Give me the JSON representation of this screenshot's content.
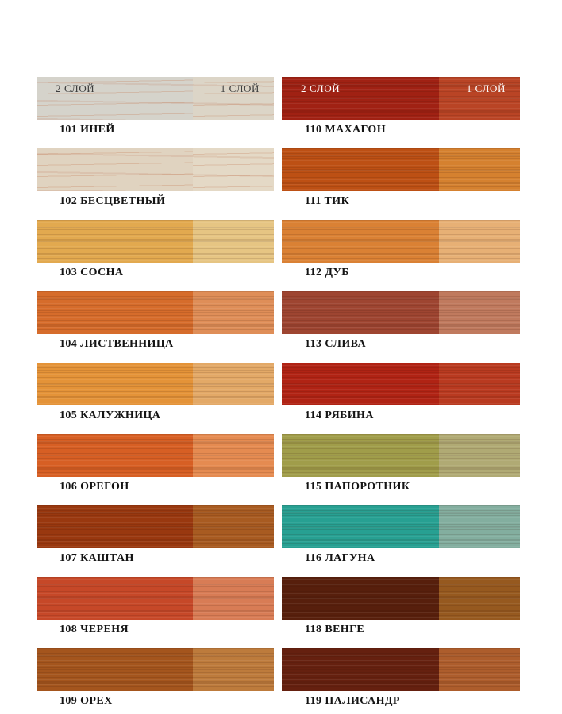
{
  "page": {
    "background": "#ffffff"
  },
  "legend": {
    "coat2_label": "2 СЛОЙ",
    "coat1_label": "1 СЛОЙ",
    "dark_text_color": "#3d3d3d",
    "light_text_color": "#ffffff"
  },
  "columns": [
    {
      "swatches": [
        {
          "code": "101",
          "name": "ИНЕЙ",
          "label": "101 ИНЕЙ",
          "coat2_color": "#d5d3cb",
          "coat1_color": "#dcd5c7",
          "texture": "smooth"
        },
        {
          "code": "102",
          "name": "БЕСЦВЕТНЫЙ",
          "label": "102 БЕСЦВЕТНЫЙ",
          "coat2_color": "#e0d3c0",
          "coat1_color": "#e4d9c6",
          "texture": "smooth"
        },
        {
          "code": "103",
          "name": "СОСНА",
          "label": "103 СОСНА",
          "coat2_color": "#e2a94f",
          "coat1_color": "#e6c583",
          "texture": "grain"
        },
        {
          "code": "104",
          "name": "ЛИСТВЕННИЦА",
          "label": "104 ЛИСТВЕННИЦА",
          "coat2_color": "#d66c2b",
          "coat1_color": "#df8e58",
          "texture": "grain"
        },
        {
          "code": "105",
          "name": "КАЛУЖНИЦА",
          "label": "105 КАЛУЖНИЦА",
          "coat2_color": "#e49338",
          "coat1_color": "#e3a967",
          "texture": "grain"
        },
        {
          "code": "106",
          "name": "ОРЕГОН",
          "label": "106 ОРЕГОН",
          "coat2_color": "#d75f24",
          "coat1_color": "#e58b51",
          "texture": "grain"
        },
        {
          "code": "107",
          "name": "КАШТАН",
          "label": "107 КАШТАН",
          "coat2_color": "#99380f",
          "coat1_color": "#a85b21",
          "texture": "grain"
        },
        {
          "code": "108",
          "name": "ЧЕРЕНЯ",
          "label": "108 ЧЕРЕНЯ",
          "coat2_color": "#c64828",
          "coat1_color": "#d87c55",
          "texture": "grain"
        },
        {
          "code": "109",
          "name": "ОРЕХ",
          "label": "109 ОРЕХ",
          "coat2_color": "#a4551d",
          "coat1_color": "#bd7b3c",
          "texture": "grain"
        }
      ]
    },
    {
      "swatches": [
        {
          "code": "110",
          "name": "МАХАГОН",
          "label": "110 МАХАГОН",
          "coat2_color": "#a02113",
          "coat1_color": "#b94425",
          "texture": "grain"
        },
        {
          "code": "111",
          "name": "ТИК",
          "label": "111 ТИК",
          "coat2_color": "#bd5014",
          "coat1_color": "#d5812f",
          "texture": "grain"
        },
        {
          "code": "112",
          "name": "ДУБ",
          "label": "112 ДУБ",
          "coat2_color": "#da8134",
          "coat1_color": "#e7b075",
          "texture": "grain"
        },
        {
          "code": "113",
          "name": "СЛИВА",
          "label": "113 СЛИВА",
          "coat2_color": "#9e4531",
          "coat1_color": "#c07a5e",
          "texture": "grain"
        },
        {
          "code": "114",
          "name": "РЯБИНА",
          "label": "114 РЯБИНА",
          "coat2_color": "#b02314",
          "coat1_color": "#b93a20",
          "texture": "grain"
        },
        {
          "code": "115",
          "name": "ПАПОРОТНИК",
          "label": "115 ПАПОРОТНИК",
          "coat2_color": "#a09d4a",
          "coat1_color": "#b0aa74",
          "texture": "grain"
        },
        {
          "code": "116",
          "name": "ЛАГУНА",
          "label": "116 ЛАГУНА",
          "coat2_color": "#27a092",
          "coat1_color": "#83ae9f",
          "texture": "grain"
        },
        {
          "code": "118",
          "name": "ВЕНГЕ",
          "label": "118 ВЕНГЕ",
          "coat2_color": "#571f0c",
          "coat1_color": "#96591f",
          "texture": "grain"
        },
        {
          "code": "119",
          "name": "ПАЛИСАНДР",
          "label": "119 ПАЛИСАНДР",
          "coat2_color": "#65200f",
          "coat1_color": "#ad5d2c",
          "texture": "grain"
        }
      ]
    }
  ]
}
